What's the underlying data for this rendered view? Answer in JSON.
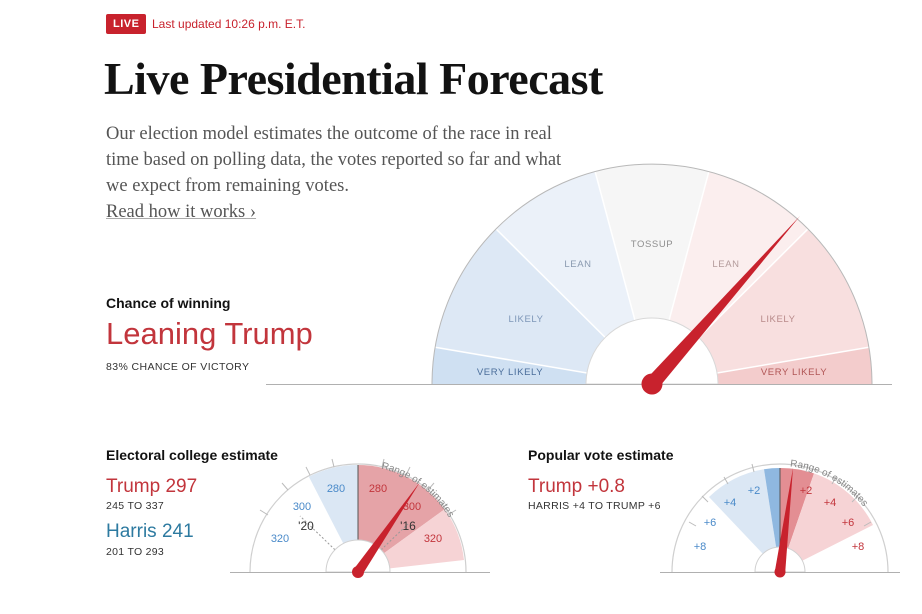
{
  "header": {
    "live_badge": "LIVE",
    "updated": "Last updated 10:26 p.m. E.T."
  },
  "title": "Live Presidential Forecast",
  "intro": {
    "text": "Our election model estimates the outcome of the race in real time based on polling data, the votes reported so far and what we expect from remaining votes.",
    "link": "Read how it works ›"
  },
  "main_gauge": {
    "heading": "Chance of winning",
    "status": "Leaning Trump",
    "chance_text": "83% CHANCE OF VICTORY",
    "trump_chance_pct": 83,
    "bands": {
      "very_likely_left": "VERY LIKELY",
      "likely_left": "LIKELY",
      "lean_left": "LEAN",
      "tossup": "TOSSUP",
      "lean_right": "LEAN",
      "likely_right": "LIKELY",
      "very_likely_right": "VERY LIKELY"
    },
    "colors": {
      "trump": "#c8222d",
      "harris": "#4a8ac9"
    }
  },
  "electoral": {
    "heading": "Electoral college estimate",
    "trump_label": "Trump 297",
    "trump_range": "245 TO 337",
    "harris_label": "Harris 241",
    "harris_range": "201 TO 293",
    "range_label": "Range of estimates",
    "ticks": {
      "t320_left": "320",
      "t300_left": "300",
      "t280_left": "280",
      "t280_right": "280",
      "t300_right": "300",
      "t320_right": "320"
    },
    "markers": {
      "y2020": "'20",
      "y2016": "'16"
    }
  },
  "popular": {
    "heading": "Popular vote estimate",
    "trump_label": "Trump +0.8",
    "range_text": "HARRIS +4 TO TRUMP +6",
    "range_label": "Range of estimates",
    "ticks": {
      "l8": "+8",
      "l6": "+6",
      "l4": "+4",
      "l2": "+2",
      "r2": "+2",
      "r4": "+4",
      "r6": "+6",
      "r8": "+8"
    }
  }
}
